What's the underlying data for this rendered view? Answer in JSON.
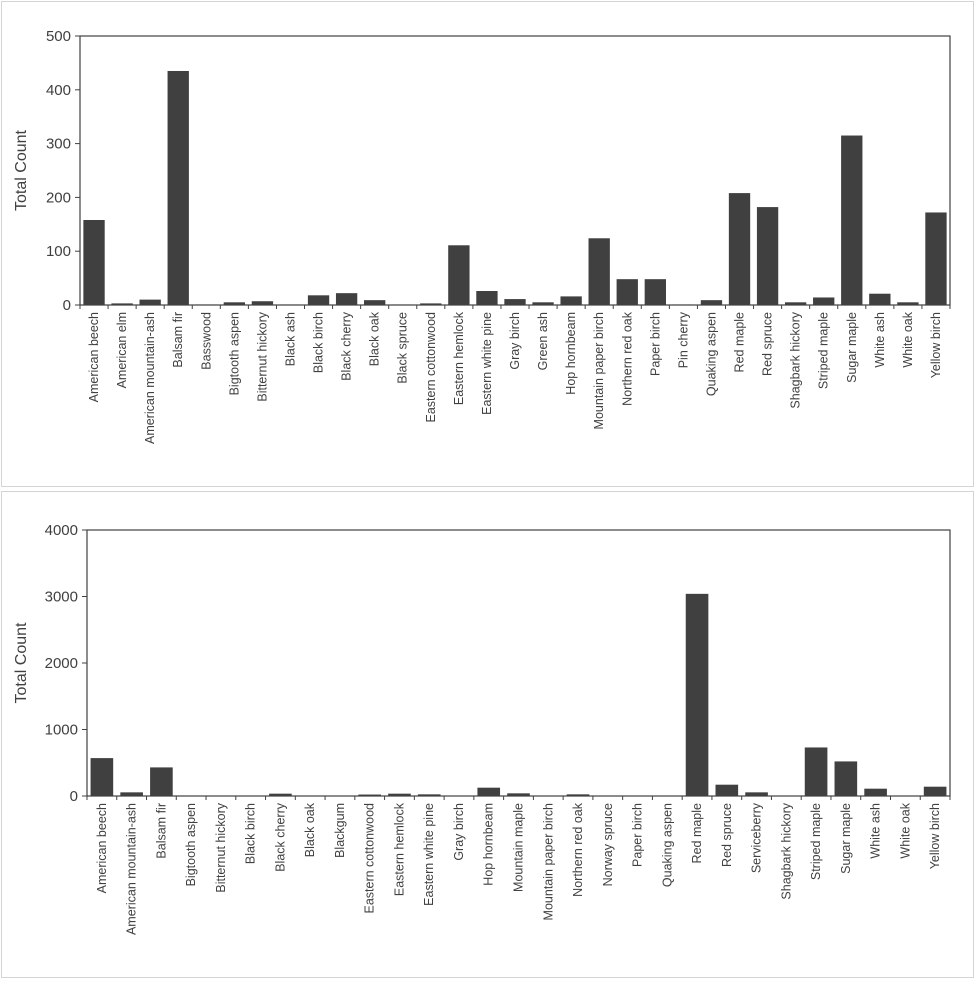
{
  "chart_data": [
    {
      "type": "bar",
      "ylabel": "Total Count",
      "xlabel": "",
      "title": "",
      "ylim": [
        0,
        500
      ],
      "yticks": [
        0,
        100,
        200,
        300,
        400,
        500
      ],
      "bar_color": "#404040",
      "grid": false,
      "categories": [
        "American beech",
        "American elm",
        "American mountain-ash",
        "Balsam fir",
        "Basswood",
        "Bigtooth aspen",
        "Bitternut hickory",
        "Black ash",
        "Black birch",
        "Black cherry",
        "Black oak",
        "Black spruce",
        "Eastern cottonwood",
        "Eastern hemlock",
        "Eastern white pine",
        "Gray birch",
        "Green ash",
        "Hop hornbeam",
        "Mountain paper birch",
        "Northern red oak",
        "Paper birch",
        "Pin cherry",
        "Quaking aspen",
        "Red maple",
        "Red spruce",
        "Shagbark hickory",
        "Striped maple",
        "Sugar maple",
        "White ash",
        "White oak",
        "Yellow birch"
      ],
      "values": [
        158,
        3,
        10,
        435,
        1,
        5,
        7,
        1,
        18,
        22,
        9,
        1,
        3,
        111,
        26,
        11,
        5,
        16,
        124,
        48,
        48,
        1,
        9,
        208,
        182,
        5,
        14,
        315,
        21,
        5,
        172
      ]
    },
    {
      "type": "bar",
      "ylabel": "Total Count",
      "xlabel": "",
      "title": "",
      "ylim": [
        0,
        4000
      ],
      "yticks": [
        0,
        1000,
        2000,
        3000,
        4000
      ],
      "bar_color": "#404040",
      "grid": false,
      "categories": [
        "American beech",
        "American mountain-ash",
        "Balsam fir",
        "Bigtooth aspen",
        "Bitternut hickory",
        "Black birch",
        "Black cherry",
        "Black oak",
        "Blackgum",
        "Eastern cottonwood",
        "Eastern hemlock",
        "Eastern white pine",
        "Gray birch",
        "Hop hornbeam",
        "Mountain maple",
        "Mountain paper birch",
        "Northern red oak",
        "Norway spruce",
        "Paper birch",
        "Quaking aspen",
        "Red maple",
        "Red spruce",
        "Serviceberry",
        "Shagbark hickory",
        "Striped maple",
        "Sugar maple",
        "White ash",
        "White oak",
        "Yellow birch"
      ],
      "values": [
        570,
        55,
        430,
        3,
        3,
        3,
        35,
        5,
        3,
        22,
        35,
        25,
        3,
        125,
        40,
        3,
        25,
        3,
        3,
        3,
        3040,
        170,
        55,
        3,
        730,
        520,
        110,
        3,
        140
      ]
    }
  ]
}
